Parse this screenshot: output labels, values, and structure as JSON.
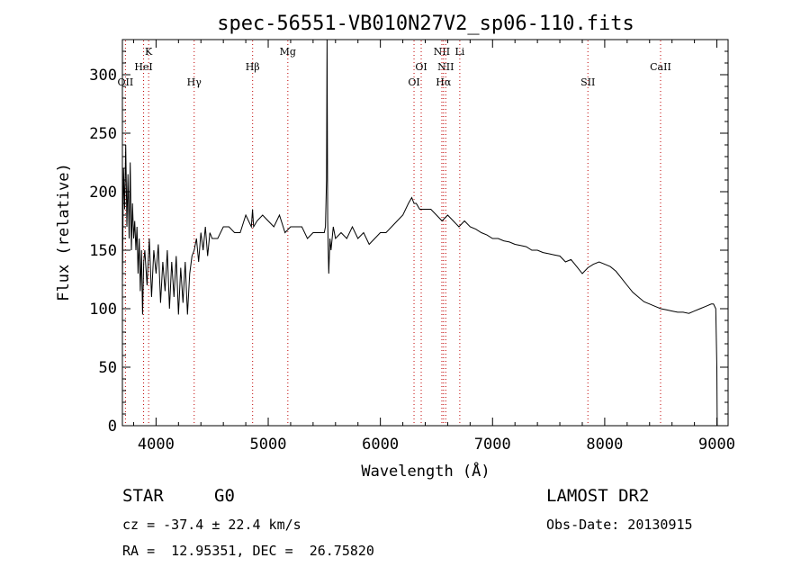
{
  "chart_data": {
    "type": "line",
    "title": "spec-56551-VB010N27V2_sp06-110.fits",
    "xlabel": "Wavelength (Å)",
    "ylabel": "Flux (relative)",
    "xlim": [
      3700,
      9100
    ],
    "ylim": [
      0,
      330
    ],
    "xticks": [
      4000,
      5000,
      6000,
      7000,
      8000,
      9000
    ],
    "yticks": [
      0,
      50,
      100,
      150,
      200,
      250,
      300
    ],
    "grid": false,
    "series": [
      {
        "x": [
          3700,
          3710,
          3720,
          3730,
          3740,
          3750,
          3760,
          3770,
          3780,
          3790,
          3800,
          3810,
          3820,
          3830,
          3840,
          3850,
          3860,
          3870,
          3880,
          3890,
          3900,
          3920,
          3940,
          3960,
          3980,
          4000,
          4020,
          4040,
          4060,
          4080,
          4100,
          4120,
          4140,
          4160,
          4180,
          4200,
          4220,
          4240,
          4260,
          4280,
          4300,
          4320,
          4340,
          4360,
          4380,
          4400,
          4420,
          4440,
          4460,
          4480,
          4500,
          4550,
          4600,
          4650,
          4700,
          4750,
          4800,
          4850,
          4860,
          4870,
          4900,
          4950,
          5000,
          5050,
          5100,
          5150,
          5200,
          5250,
          5300,
          5350,
          5400,
          5450,
          5500,
          5510,
          5520,
          5525,
          5530,
          5535,
          5540,
          5550,
          5560,
          5580,
          5600,
          5650,
          5700,
          5750,
          5800,
          5850,
          5900,
          5950,
          6000,
          6050,
          6100,
          6150,
          6200,
          6250,
          6280,
          6300,
          6320,
          6350,
          6400,
          6450,
          6500,
          6550,
          6600,
          6650,
          6700,
          6750,
          6800,
          6850,
          6900,
          6950,
          7000,
          7050,
          7100,
          7150,
          7200,
          7250,
          7300,
          7350,
          7400,
          7450,
          7500,
          7550,
          7600,
          7650,
          7700,
          7750,
          7800,
          7850,
          7900,
          7950,
          8000,
          8050,
          8100,
          8150,
          8200,
          8250,
          8300,
          8350,
          8400,
          8450,
          8500,
          8550,
          8600,
          8650,
          8700,
          8750,
          8800,
          8850,
          8900,
          8950,
          8970,
          8990,
          9000,
          9003
        ],
        "y": [
          120,
          220,
          185,
          240,
          170,
          215,
          160,
          225,
          150,
          190,
          160,
          175,
          150,
          170,
          130,
          160,
          115,
          150,
          95,
          140,
          150,
          120,
          160,
          110,
          150,
          130,
          155,
          105,
          140,
          115,
          150,
          100,
          140,
          110,
          145,
          95,
          135,
          105,
          140,
          95,
          130,
          145,
          150,
          160,
          140,
          165,
          150,
          170,
          145,
          165,
          160,
          160,
          170,
          170,
          165,
          165,
          180,
          170,
          185,
          170,
          175,
          180,
          175,
          170,
          180,
          165,
          170,
          170,
          170,
          160,
          165,
          165,
          165,
          170,
          210,
          330,
          175,
          150,
          130,
          160,
          150,
          170,
          160,
          165,
          160,
          170,
          160,
          165,
          155,
          160,
          165,
          165,
          170,
          175,
          180,
          190,
          195,
          190,
          190,
          185,
          185,
          185,
          180,
          175,
          180,
          175,
          170,
          175,
          170,
          168,
          165,
          163,
          160,
          160,
          158,
          157,
          155,
          154,
          153,
          150,
          150,
          148,
          147,
          146,
          145,
          140,
          142,
          136,
          130,
          135,
          138,
          140,
          138,
          136,
          132,
          126,
          120,
          114,
          110,
          106,
          104,
          102,
          100,
          99,
          98,
          97,
          97,
          96,
          98,
          100,
          102,
          104,
          104,
          100,
          50,
          0
        ]
      }
    ],
    "lines": [
      {
        "label": "OII",
        "wavelength": 3727,
        "row": 3
      },
      {
        "label": "K",
        "wavelength": 3934,
        "row": 1
      },
      {
        "label": "HeI",
        "wavelength": 3889,
        "row": 2
      },
      {
        "label": "Hγ",
        "wavelength": 4340,
        "row": 3
      },
      {
        "label": "Hβ",
        "wavelength": 4861,
        "row": 2
      },
      {
        "label": "Mg",
        "wavelength": 5175,
        "row": 1
      },
      {
        "label": "OI",
        "wavelength": 6300,
        "row": 3
      },
      {
        "label": "OI",
        "wavelength": 6364,
        "row": 2
      },
      {
        "label": "NII",
        "wavelength": 6548,
        "row": 1
      },
      {
        "label": "NII",
        "wavelength": 6583,
        "row": 2
      },
      {
        "label": "Hα",
        "wavelength": 6563,
        "row": 3
      },
      {
        "label": "Li",
        "wavelength": 6708,
        "row": 1
      },
      {
        "label": "SII",
        "wavelength": 7850,
        "row": 3
      },
      {
        "label": "CaII",
        "wavelength": 8498,
        "row": 2
      }
    ],
    "colors": {
      "spectrum": "#000000",
      "line_markers": "#c00000"
    }
  },
  "info": {
    "object_class": "STAR",
    "subclass": "G0",
    "survey": "LAMOST DR2",
    "redshift": "cz = -37.4 ± 22.4 km/s",
    "obs_date": "Obs-Date: 20130915",
    "coords": "RA =  12.95351, DEC =  26.75820"
  }
}
